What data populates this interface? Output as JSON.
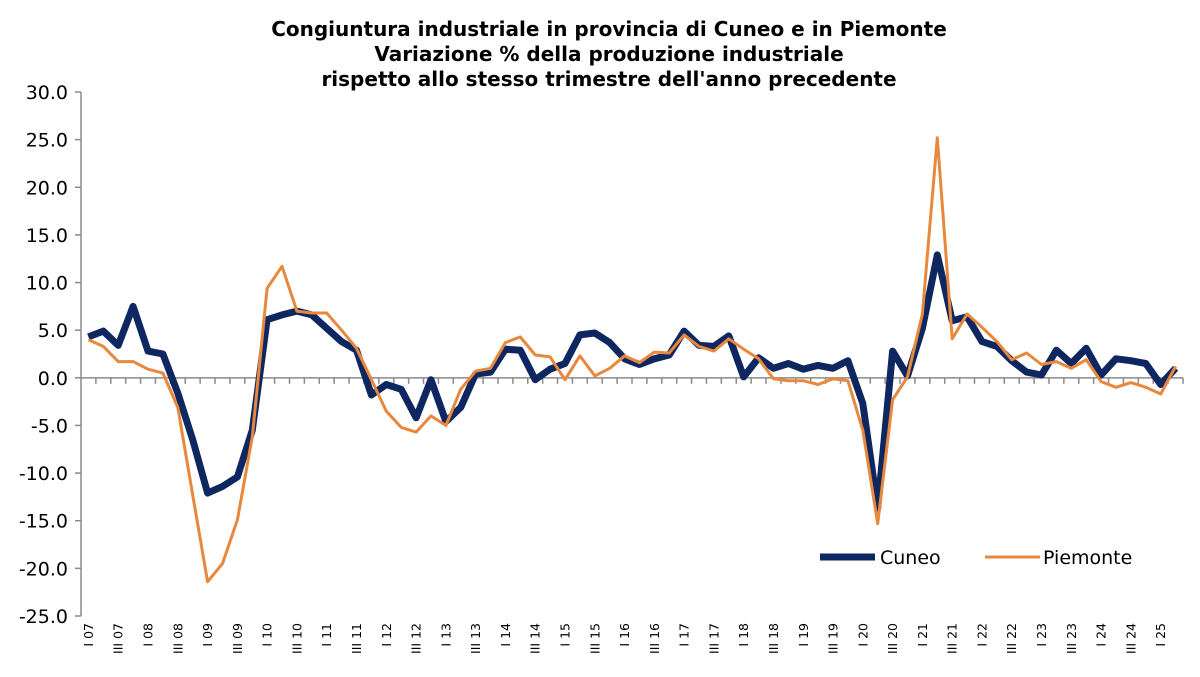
{
  "chart_data": {
    "type": "line",
    "title": [
      "Congiuntura industriale in provincia di Cuneo e in Piemonte",
      "Variazione % della produzione industriale",
      "rispetto allo stesso trimestre dell'anno precedente"
    ],
    "xlabel": "",
    "ylabel": "",
    "ylim": [
      -25,
      30
    ],
    "y_ticks": [
      "30.0",
      "25.0",
      "20.0",
      "15.0",
      "10.0",
      "5.0",
      "0.0",
      "-5.0",
      "-10.0",
      "-15.0",
      "-20.0",
      "-25.0"
    ],
    "y_tick_values": [
      30,
      25,
      20,
      15,
      10,
      5,
      0,
      -5,
      -10,
      -15,
      -20,
      -25
    ],
    "n_points": 74,
    "x_period": "I 07 – II 25 (quarterly)",
    "x_tick_labels": [
      "I 07",
      "III 07",
      "I 08",
      "III 08",
      "I 09",
      "III 09",
      "I 10",
      "III 10",
      "I 11",
      "III 11",
      "I 12",
      "III 12",
      "I 13",
      "III 13",
      "I 14",
      "III 14",
      "I 15",
      "III 15",
      "I 16",
      "III 16",
      "I 17",
      "III 17",
      "I 18",
      "III 18",
      "I 19",
      "III 19",
      "I 20",
      "III 20",
      "I 21",
      "III 21",
      "I 22",
      "III 22",
      "I 23",
      "III 23",
      "I 24",
      "III 24",
      "I 25"
    ],
    "grid": false,
    "legend_position": "bottom-right",
    "series": [
      {
        "name": "Cuneo",
        "color": "#0f2760",
        "values": [
          4.3,
          4.9,
          3.4,
          7.5,
          2.8,
          2.5,
          -1.6,
          -6.5,
          -12.1,
          -11.4,
          -10.4,
          -5.5,
          6.1,
          6.6,
          7.0,
          6.6,
          5.2,
          3.8,
          2.9,
          -1.8,
          -0.7,
          -1.2,
          -4.2,
          -0.2,
          -4.6,
          -3.1,
          0.4,
          0.6,
          3.0,
          2.9,
          -0.2,
          0.9,
          1.5,
          4.5,
          4.7,
          3.7,
          2.0,
          1.4,
          2.0,
          2.4,
          4.9,
          3.4,
          3.3,
          4.4,
          0.1,
          2.1,
          1.0,
          1.5,
          0.9,
          1.3,
          1.0,
          1.8,
          -2.7,
          -13.7,
          2.8,
          0.2,
          5.2,
          12.9,
          6.0,
          6.4,
          3.8,
          3.3,
          1.8,
          0.6,
          0.3,
          2.9,
          1.5,
          3.1,
          0.3,
          2.0,
          1.8,
          1.5,
          -0.7,
          1.0
        ]
      },
      {
        "name": "Piemonte",
        "color": "#e8883c",
        "values": [
          4.0,
          3.3,
          1.7,
          1.7,
          0.9,
          0.5,
          -3.1,
          -12.3,
          -21.4,
          -19.5,
          -14.9,
          -6.2,
          9.4,
          11.7,
          7.0,
          6.8,
          6.8,
          5.0,
          3.1,
          -0.2,
          -3.5,
          -5.2,
          -5.7,
          -4.0,
          -5.0,
          -1.2,
          0.7,
          1.0,
          3.7,
          4.3,
          2.4,
          2.2,
          -0.2,
          2.3,
          0.2,
          1.0,
          2.3,
          1.6,
          2.7,
          2.6,
          4.5,
          3.3,
          2.8,
          4.1,
          3.0,
          2.0,
          -0.1,
          -0.3,
          -0.3,
          -0.7,
          -0.1,
          -0.3,
          -5.5,
          -15.3,
          -2.3,
          0.1,
          6.7,
          25.2,
          4.1,
          6.7,
          5.3,
          3.8,
          1.9,
          2.6,
          1.4,
          1.7,
          1.0,
          1.9,
          -0.4,
          -1.0,
          -0.5,
          -1.0,
          -1.7,
          1.2
        ]
      }
    ],
    "axis_color": "#8a8a8a"
  }
}
